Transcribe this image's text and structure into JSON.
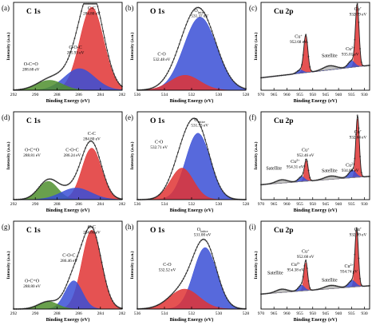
{
  "figure": {
    "colors": {
      "red": "#e03434",
      "blue": "#3a4fd6",
      "green": "#4f8f2e",
      "gray": "#b6b6b6",
      "data": "#222222"
    }
  },
  "chart_data": [
    {
      "panel": "(a)",
      "title": "C 1s",
      "type": "line",
      "xlabel": "Binding Energy (eV)",
      "ylabel": "Intensity (a.u.)",
      "xlim": [
        292,
        282
      ],
      "xticks": [
        292,
        290,
        288,
        286,
        284,
        282
      ],
      "peaks": [
        {
          "name": "C-C",
          "energy": "284.80 eV",
          "center": 284.8,
          "height": 1.0,
          "width": 1.1,
          "color": "red",
          "label_x": 284.8,
          "label_y": 0.97
        },
        {
          "name": "C-O-C",
          "energy": "285.93 eV",
          "center": 285.93,
          "height": 0.26,
          "width": 1.4,
          "color": "blue",
          "label_x": 286.3,
          "label_y": 0.5
        },
        {
          "name": "O-C=O",
          "energy": "288.68 eV",
          "center": 288.68,
          "height": 0.12,
          "width": 1.2,
          "color": "green",
          "label_x": 290.4,
          "label_y": 0.3
        }
      ]
    },
    {
      "panel": "(b)",
      "title": "O 1s",
      "type": "line",
      "xlabel": "Binding Energy (eV)",
      "ylabel": "Intensity (a.u.)",
      "xlim": [
        536,
        528
      ],
      "xticks": [
        536,
        534,
        532,
        530,
        528
      ],
      "peaks": [
        {
          "name": "O",
          "sub": "lattice",
          "energy": "531.37 eV",
          "center": 531.37,
          "height": 0.88,
          "width": 1.2,
          "color": "blue",
          "label_x": 531.4,
          "label_y": 0.94
        },
        {
          "name": "C-O",
          "energy": "532.48 eV",
          "center": 532.48,
          "height": 0.18,
          "width": 1.1,
          "color": "red",
          "label_x": 534.2,
          "label_y": 0.42
        }
      ]
    },
    {
      "panel": "(c)",
      "title": "Cu 2p",
      "type": "line",
      "xlabel": "Binding Energy (eV)",
      "ylabel": "Intensity (a.u.)",
      "xlim": [
        970,
        928
      ],
      "xticks": [
        970,
        965,
        960,
        955,
        950,
        945,
        940,
        935,
        930
      ],
      "baseline": [
        0.15,
        0.3
      ],
      "peaks": [
        {
          "name": "Cu",
          "sup": "+",
          "energy": "932.79 eV",
          "center": 932.79,
          "height": 0.75,
          "width": 0.7,
          "color": "red",
          "label_x": 932.5,
          "label_y": 0.96
        },
        {
          "name": "Cu",
          "sup": "+",
          "energy": "952.68 eV",
          "center": 952.68,
          "height": 0.45,
          "width": 0.8,
          "color": "red",
          "label_x": 955.5,
          "label_y": 0.63
        },
        {
          "name": "Cu",
          "sup": "2+",
          "energy": "935.01 eV",
          "center": 935.01,
          "height": 0.08,
          "width": 1.3,
          "color": "blue",
          "label_x": 935.5,
          "label_y": 0.48
        },
        {
          "name": "Satellite",
          "center": 943.5,
          "height": 0.05,
          "width": 2.5,
          "color": "gray",
          "label_x": 943.5,
          "label_y": 0.4
        },
        {
          "center": 954.9,
          "height": 0.04,
          "width": 1.2,
          "color": "blue"
        }
      ]
    },
    {
      "panel": "(d)",
      "title": "C 1s",
      "type": "line",
      "xlabel": "Binding Energy (eV)",
      "ylabel": "Intensity (a.u.)",
      "xlim": [
        292,
        282
      ],
      "xticks": [
        292,
        290,
        288,
        286,
        284,
        282
      ],
      "peaks": [
        {
          "name": "C-C",
          "energy": "284.80 eV",
          "center": 284.8,
          "height": 0.62,
          "width": 0.9,
          "color": "red",
          "label_x": 284.8,
          "label_y": 0.78
        },
        {
          "name": "C-O-C",
          "energy": "286.24 eV",
          "center": 286.24,
          "height": 0.14,
          "width": 1.4,
          "color": "blue",
          "label_x": 286.6,
          "label_y": 0.58
        },
        {
          "name": "O-C=O",
          "energy": "288.81 eV",
          "center": 288.81,
          "height": 0.22,
          "width": 0.9,
          "color": "green",
          "label_x": 290.3,
          "label_y": 0.58
        }
      ]
    },
    {
      "panel": "(e)",
      "title": "O 1s",
      "type": "line",
      "xlabel": "Binding Energy (eV)",
      "ylabel": "Intensity (a.u.)",
      "xlim": [
        536,
        528
      ],
      "xticks": [
        536,
        534,
        532,
        530,
        528
      ],
      "peaks": [
        {
          "name": "O",
          "sub": "lattice",
          "energy": "531.53 eV",
          "center": 531.53,
          "height": 0.8,
          "width": 0.9,
          "color": "blue",
          "label_x": 531.4,
          "label_y": 0.94
        },
        {
          "name": "C-O",
          "energy": "532.71 eV",
          "center": 532.71,
          "height": 0.38,
          "width": 0.85,
          "color": "red",
          "label_x": 534.4,
          "label_y": 0.68
        }
      ]
    },
    {
      "panel": "(f)",
      "title": "Cu 2p",
      "type": "line",
      "xlabel": "Binding Energy (eV)",
      "ylabel": "Intensity (a.u.)",
      "xlim": [
        970,
        928
      ],
      "xticks": [
        970,
        965,
        960,
        955,
        950,
        945,
        940,
        935,
        930
      ],
      "baseline": [
        0.18,
        0.28
      ],
      "peaks": [
        {
          "name": "Cu",
          "sup": "+",
          "energy": "932.64 eV",
          "center": 932.64,
          "height": 0.72,
          "width": 0.65,
          "color": "red",
          "label_x": 932.5,
          "label_y": 0.8
        },
        {
          "name": "Cu",
          "sup": "+",
          "energy": "952.46 eV",
          "center": 952.46,
          "height": 0.25,
          "width": 0.7,
          "color": "red",
          "label_x": 952.8,
          "label_y": 0.58
        },
        {
          "name": "Cu",
          "sup": "2+",
          "energy": "954.31 eV",
          "center": 954.31,
          "height": 0.06,
          "width": 1.2,
          "color": "blue",
          "label_x": 956.8,
          "label_y": 0.44
        },
        {
          "name": "Cu",
          "sup": "2+",
          "energy": "934.69 eV",
          "center": 934.69,
          "height": 0.09,
          "width": 1.4,
          "color": "blue",
          "label_x": 935.5,
          "label_y": 0.4
        },
        {
          "name": "Satellite",
          "center": 943.0,
          "height": 0.04,
          "width": 2.5,
          "color": "gray",
          "label_x": 943.5,
          "label_y": 0.33
        },
        {
          "name": "Satellite",
          "center": 962.0,
          "height": 0.04,
          "width": 2.2,
          "color": "gray",
          "label_x": 965.0,
          "label_y": 0.36
        }
      ]
    },
    {
      "panel": "(g)",
      "title": "C 1s",
      "type": "line",
      "xlabel": "Binding Energy (eV)",
      "ylabel": "Intensity (a.u.)",
      "xlim": [
        292,
        282
      ],
      "xticks": [
        292,
        290,
        288,
        286,
        284,
        282
      ],
      "peaks": [
        {
          "name": "C-C",
          "energy": "284.80 eV",
          "center": 284.8,
          "height": 0.95,
          "width": 0.9,
          "color": "red",
          "label_x": 284.8,
          "label_y": 0.97
        },
        {
          "name": "C-O-C",
          "energy": "286.46 eV",
          "center": 286.46,
          "height": 0.34,
          "width": 0.8,
          "color": "blue",
          "label_x": 286.9,
          "label_y": 0.63
        },
        {
          "name": "O-C=O",
          "energy": "288.80 eV",
          "center": 288.8,
          "height": 0.09,
          "width": 0.9,
          "color": "green",
          "label_x": 290.3,
          "label_y": 0.32
        }
      ]
    },
    {
      "panel": "(h)",
      "title": "O 1s",
      "type": "line",
      "xlabel": "Binding Energy (eV)",
      "ylabel": "Intensity (a.u.)",
      "xlim": [
        536,
        528
      ],
      "xticks": [
        536,
        534,
        532,
        530,
        528
      ],
      "peaks": [
        {
          "name": "O",
          "sub": "lattice",
          "energy": "531.00 eV",
          "center": 531.0,
          "height": 0.74,
          "width": 0.85,
          "color": "blue",
          "label_x": 531.2,
          "label_y": 0.94
        },
        {
          "name": "C-O",
          "energy": "532.52 eV",
          "center": 532.52,
          "height": 0.24,
          "width": 1.1,
          "color": "red",
          "label_x": 533.8,
          "label_y": 0.52
        }
      ]
    },
    {
      "panel": "(i)",
      "title": "Cu 2p",
      "type": "line",
      "xlabel": "Binding Energy (eV)",
      "ylabel": "Intensity (a.u.)",
      "xlim": [
        970,
        928
      ],
      "xticks": [
        970,
        965,
        960,
        955,
        950,
        945,
        940,
        935,
        930
      ],
      "baseline": [
        0.18,
        0.28
      ],
      "peaks": [
        {
          "name": "Cu",
          "sup": "+",
          "energy": "932.99 eV",
          "center": 932.99,
          "height": 0.68,
          "width": 0.65,
          "color": "red",
          "label_x": 932.5,
          "label_y": 0.94
        },
        {
          "name": "Cu",
          "sup": "+",
          "energy": "952.68 eV",
          "center": 952.68,
          "height": 0.34,
          "width": 0.7,
          "color": "red",
          "label_x": 952.8,
          "label_y": 0.68
        },
        {
          "name": "Cu",
          "sup": "2+",
          "energy": "954.38 eV",
          "center": 954.38,
          "height": 0.07,
          "width": 1.2,
          "color": "blue",
          "label_x": 956.6,
          "label_y": 0.52
        },
        {
          "name": "Cu",
          "sup": "2+",
          "energy": "934.74 eV",
          "center": 934.74,
          "height": 0.08,
          "width": 1.4,
          "color": "blue",
          "label_x": 936.0,
          "label_y": 0.5
        },
        {
          "name": "Satellite",
          "center": 943.0,
          "height": 0.04,
          "width": 2.5,
          "color": "gray",
          "label_x": 943.5,
          "label_y": 0.33
        },
        {
          "name": "Satellite",
          "center": 962.0,
          "height": 0.04,
          "width": 2.2,
          "color": "gray",
          "label_x": 964.5,
          "label_y": 0.42
        }
      ]
    }
  ]
}
